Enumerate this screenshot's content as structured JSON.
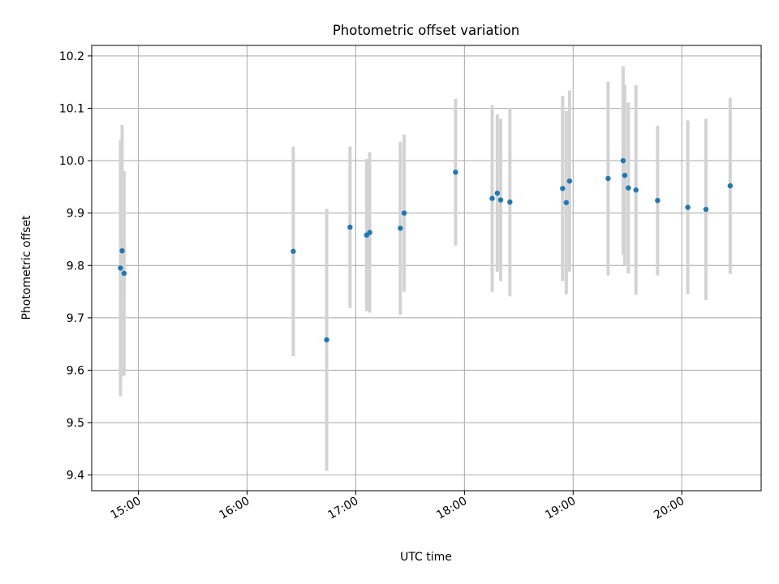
{
  "chart_data": {
    "type": "scatter",
    "title": "Photometric offset variation",
    "xlabel": "UTC time",
    "ylabel": "Photometric offset",
    "xlim_hours": [
      14.57,
      20.73
    ],
    "ylim": [
      9.37,
      10.22
    ],
    "grid": true,
    "x_ticks": [
      {
        "value": 15,
        "label": "15:00"
      },
      {
        "value": 16,
        "label": "16:00"
      },
      {
        "value": 17,
        "label": "17:00"
      },
      {
        "value": 18,
        "label": "18:00"
      },
      {
        "value": 19,
        "label": "19:00"
      },
      {
        "value": 20,
        "label": "20:00"
      }
    ],
    "y_ticks": [
      {
        "value": 9.4,
        "label": "9.4"
      },
      {
        "value": 9.5,
        "label": "9.5"
      },
      {
        "value": 9.6,
        "label": "9.6"
      },
      {
        "value": 9.7,
        "label": "9.7"
      },
      {
        "value": 9.8,
        "label": "9.8"
      },
      {
        "value": 9.9,
        "label": "9.9"
      },
      {
        "value": 10.0,
        "label": "10.0"
      },
      {
        "value": 10.1,
        "label": "10.1"
      },
      {
        "value": 10.2,
        "label": "10.2"
      }
    ],
    "series": [
      {
        "name": "Photometric offset",
        "point_color": "#1f77b4",
        "errorbar_color": "#d3d3d3",
        "points": [
          {
            "time": 14.835,
            "value": 9.795,
            "err": 0.245
          },
          {
            "time": 14.85,
            "value": 9.828,
            "err": 0.24
          },
          {
            "time": 14.868,
            "value": 9.785,
            "err": 0.195
          },
          {
            "time": 16.425,
            "value": 9.827,
            "err": 0.2
          },
          {
            "time": 16.732,
            "value": 9.658,
            "err": 0.25
          },
          {
            "time": 16.947,
            "value": 9.873,
            "err": 0.154
          },
          {
            "time": 17.1,
            "value": 9.858,
            "err": 0.145
          },
          {
            "time": 17.128,
            "value": 9.863,
            "err": 0.153
          },
          {
            "time": 17.41,
            "value": 9.871,
            "err": 0.165
          },
          {
            "time": 17.445,
            "value": 9.9,
            "err": 0.15
          },
          {
            "time": 17.918,
            "value": 9.978,
            "err": 0.14
          },
          {
            "time": 18.255,
            "value": 9.928,
            "err": 0.178
          },
          {
            "time": 18.302,
            "value": 9.938,
            "err": 0.15
          },
          {
            "time": 18.333,
            "value": 9.925,
            "err": 0.155
          },
          {
            "time": 18.418,
            "value": 9.921,
            "err": 0.18
          },
          {
            "time": 18.903,
            "value": 9.947,
            "err": 0.177
          },
          {
            "time": 18.937,
            "value": 9.92,
            "err": 0.175
          },
          {
            "time": 18.967,
            "value": 9.961,
            "err": 0.173
          },
          {
            "time": 19.322,
            "value": 9.966,
            "err": 0.185
          },
          {
            "time": 19.46,
            "value": 10.0,
            "err": 0.18
          },
          {
            "time": 19.475,
            "value": 9.972,
            "err": 0.173
          },
          {
            "time": 19.508,
            "value": 9.948,
            "err": 0.163
          },
          {
            "time": 19.578,
            "value": 9.944,
            "err": 0.2
          },
          {
            "time": 19.777,
            "value": 9.924,
            "err": 0.143
          },
          {
            "time": 20.055,
            "value": 9.911,
            "err": 0.166
          },
          {
            "time": 20.222,
            "value": 9.907,
            "err": 0.173
          },
          {
            "time": 20.445,
            "value": 9.952,
            "err": 0.168
          }
        ]
      }
    ]
  }
}
